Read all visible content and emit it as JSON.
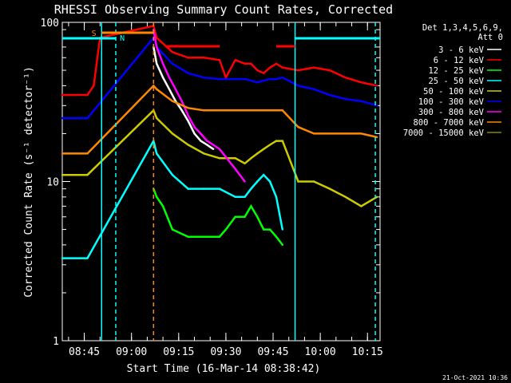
{
  "chart_data": {
    "type": "line",
    "title": "RHESSI Observing Summary Count Rates, Corrected",
    "xlabel": "Start Time (16-Mar-14 08:38:42)",
    "ylabel": "Corrected Count Rate (s⁻¹ detector⁻¹)",
    "y_scale": "log",
    "ylim": [
      1,
      100
    ],
    "xlim_minutes_after_0838": [
      0,
      101
    ],
    "x_ticks": [
      "08:45",
      "09:00",
      "09:15",
      "09:30",
      "09:45",
      "10:00",
      "10:15"
    ],
    "y_ticks": [
      "1",
      "10",
      "100"
    ],
    "footer_date": "21-Oct-2021 10:36",
    "legend_header": [
      "Det 1,3,4,5,6,9,",
      "Att 0"
    ],
    "legend_placement": "right",
    "x_units": "minutes after 08:38",
    "series": [
      {
        "name": "3 - 6 keV",
        "color": "#ffffff",
        "x": [
          29,
          30,
          32,
          34,
          36,
          38,
          40,
          42,
          44,
          46,
          48
        ],
        "values": [
          70,
          55,
          45,
          38,
          32,
          28,
          24,
          20,
          18,
          17,
          16
        ]
      },
      {
        "name": "6 - 12 keV",
        "color": "#ff0000",
        "x": [
          0,
          8,
          10,
          12,
          29,
          30,
          35,
          40,
          45,
          50,
          52,
          55,
          58,
          60,
          62,
          64,
          66,
          68,
          70,
          75,
          80,
          85,
          90,
          95,
          100
        ],
        "values": [
          35,
          35,
          40,
          80,
          95,
          80,
          65,
          60,
          60,
          58,
          45,
          58,
          55,
          55,
          50,
          48,
          52,
          55,
          52,
          50,
          52,
          50,
          45,
          42,
          40
        ]
      },
      {
        "name": "12 - 25 keV",
        "color": "#00ff00",
        "x": [
          29,
          30,
          32,
          35,
          40,
          45,
          50,
          52,
          55,
          58,
          60,
          62,
          64,
          66,
          68,
          70
        ],
        "values": [
          9,
          8,
          7,
          5,
          4.5,
          4.5,
          4.5,
          5,
          6,
          6,
          7,
          6,
          5,
          5,
          4.5,
          4
        ]
      },
      {
        "name": "25 - 50 keV",
        "color": "#00ffff",
        "x": [
          0,
          8,
          29,
          30,
          35,
          40,
          45,
          50,
          55,
          58,
          60,
          62,
          64,
          66,
          68,
          70
        ],
        "values": [
          3.3,
          3.3,
          18,
          15,
          11,
          9,
          9,
          9,
          8,
          8,
          9,
          10,
          11,
          10,
          8,
          5
        ]
      },
      {
        "name": "50 - 100 keV",
        "color": "#cccc00",
        "x": [
          0,
          8,
          29,
          30,
          35,
          40,
          45,
          50,
          55,
          58,
          60,
          62,
          64,
          66,
          68,
          70,
          75,
          80,
          85,
          90,
          95,
          100
        ],
        "values": [
          11,
          11,
          28,
          25,
          20,
          17,
          15,
          14,
          14,
          13,
          14,
          15,
          16,
          17,
          18,
          18,
          10,
          10,
          9,
          8,
          7,
          8
        ]
      },
      {
        "name": "100 - 300 keV",
        "color": "#0000ff",
        "x": [
          0,
          8,
          29,
          30,
          35,
          40,
          45,
          50,
          55,
          58,
          60,
          62,
          64,
          66,
          68,
          70,
          75,
          80,
          85,
          90,
          95,
          100
        ],
        "values": [
          25,
          25,
          80,
          70,
          55,
          48,
          45,
          44,
          44,
          44,
          43,
          42,
          43,
          44,
          44,
          45,
          40,
          38,
          35,
          33,
          32,
          30
        ]
      },
      {
        "name": "300 - 800 keV",
        "color": "#ff00ff",
        "x": [
          29,
          30,
          32,
          34,
          36,
          38,
          40,
          42,
          44,
          46,
          48,
          50,
          55,
          58
        ],
        "values": [
          90,
          70,
          55,
          45,
          38,
          32,
          26,
          22,
          20,
          18,
          17,
          16,
          12,
          10
        ]
      },
      {
        "name": "800 - 7000 keV",
        "color": "#ff8800",
        "x": [
          0,
          8,
          29,
          30,
          35,
          40,
          45,
          50,
          55,
          58,
          60,
          62,
          64,
          66,
          68,
          70,
          75,
          80,
          85,
          90,
          95,
          100
        ],
        "values": [
          15,
          15,
          40,
          38,
          32,
          29,
          28,
          28,
          28,
          28,
          28,
          28,
          28,
          28,
          28,
          28,
          22,
          20,
          20,
          20,
          20,
          19
        ]
      },
      {
        "name": "7000 - 15000 keV",
        "color": "#888800",
        "x": [],
        "values": []
      }
    ]
  }
}
